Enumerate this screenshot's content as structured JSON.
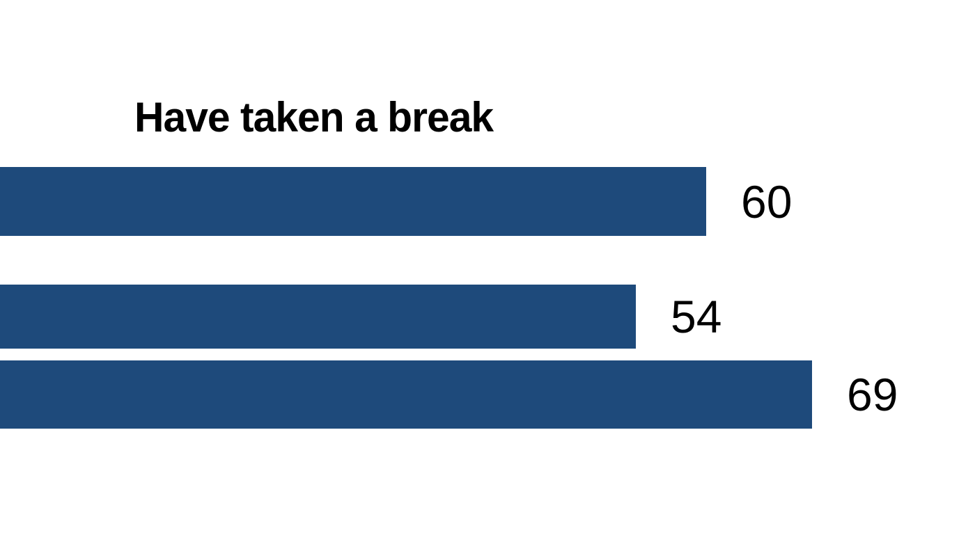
{
  "page": {
    "background_color": "#ffffff"
  },
  "chart_data": {
    "type": "bar",
    "orientation": "horizontal",
    "title": "Have taken a break",
    "values": [
      60,
      54,
      69
    ],
    "value_labels": [
      "60",
      "54",
      "69"
    ],
    "xlim": [
      0,
      83
    ],
    "grid": false,
    "legend": "none",
    "value_label_position": "right-of-bar",
    "bar_color": "#1e4a7b",
    "title_color": "#000000",
    "value_label_color": "#000000"
  }
}
